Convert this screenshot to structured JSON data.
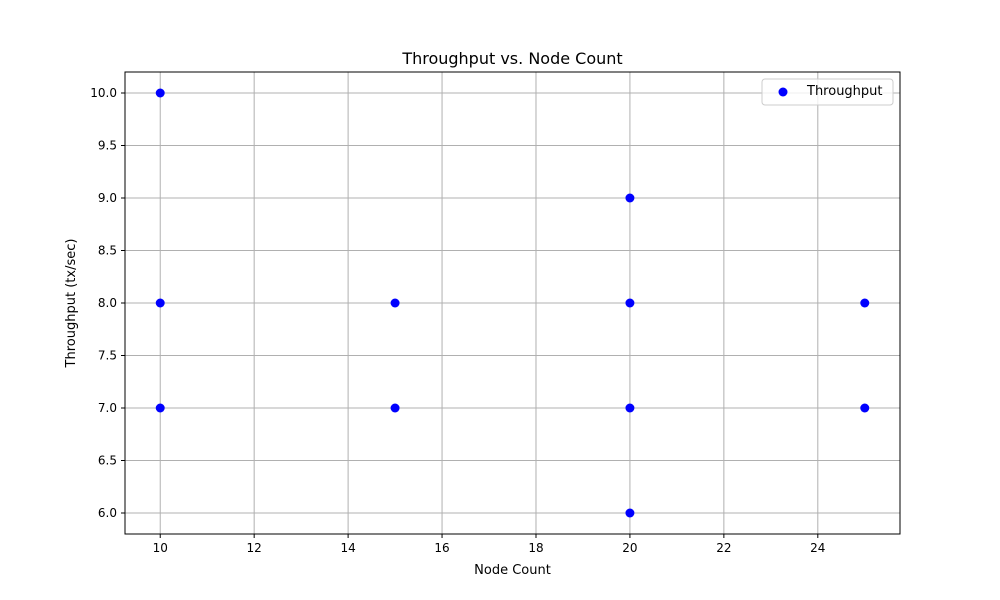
{
  "chart_data": {
    "type": "scatter",
    "title": "Throughput vs. Node Count",
    "xlabel": "Node Count",
    "ylabel": "Throughput (tx/sec)",
    "xlim": [
      9.25,
      25.75
    ],
    "ylim": [
      5.8,
      10.2
    ],
    "xticks": [
      10,
      12,
      14,
      16,
      18,
      20,
      22,
      24
    ],
    "yticks": [
      6.0,
      6.5,
      7.0,
      7.5,
      8.0,
      8.5,
      9.0,
      9.5,
      10.0
    ],
    "grid": true,
    "legend_position": "top-right",
    "series": [
      {
        "name": "Throughput",
        "color": "#0000ff",
        "marker": "circle",
        "points": [
          {
            "x": 10,
            "y": 10
          },
          {
            "x": 10,
            "y": 8
          },
          {
            "x": 10,
            "y": 7
          },
          {
            "x": 15,
            "y": 8
          },
          {
            "x": 15,
            "y": 7
          },
          {
            "x": 20,
            "y": 9
          },
          {
            "x": 20,
            "y": 8
          },
          {
            "x": 20,
            "y": 7
          },
          {
            "x": 20,
            "y": 6
          },
          {
            "x": 25,
            "y": 8
          },
          {
            "x": 25,
            "y": 7
          }
        ]
      }
    ]
  }
}
